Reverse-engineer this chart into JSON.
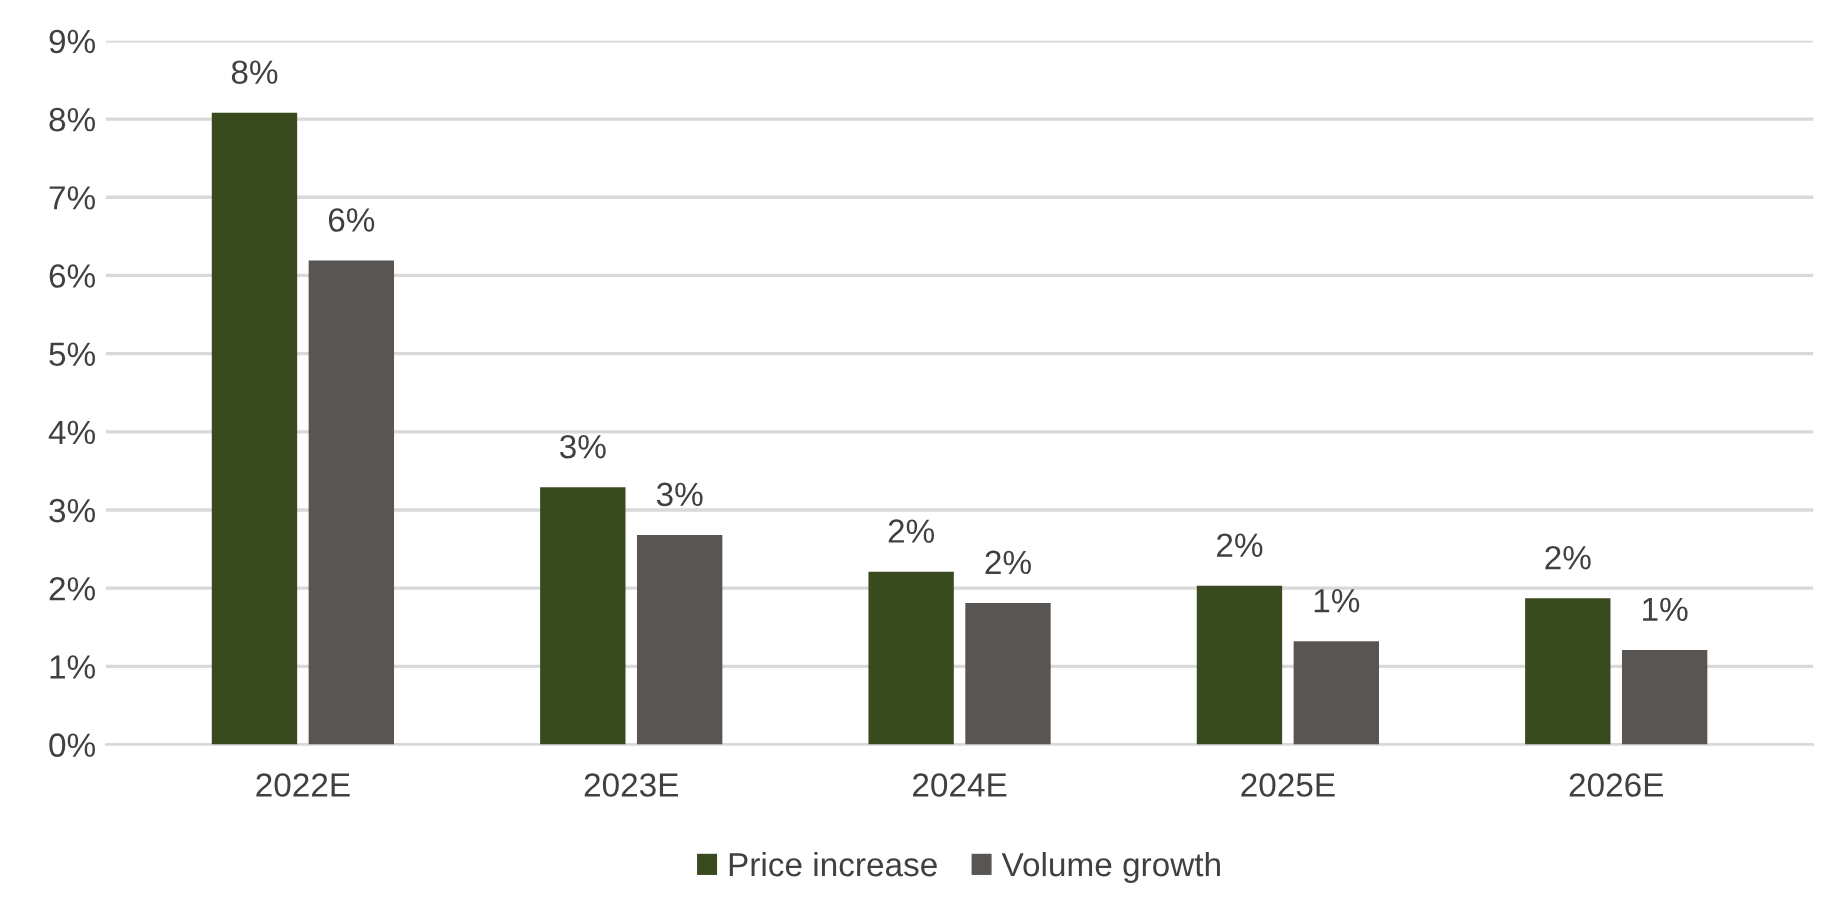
{
  "chart_data": {
    "type": "bar",
    "categories": [
      "2022E",
      "2023E",
      "2024E",
      "2025E",
      "2026E"
    ],
    "series": [
      {
        "name": "Price increase",
        "color": "#3a4a1f",
        "values": [
          8.08,
          3.29,
          2.21,
          2.03,
          1.87
        ],
        "value_labels": [
          "8%",
          "3%",
          "2%",
          "2%",
          "2%"
        ]
      },
      {
        "name": "Volume growth",
        "color": "#595553",
        "values": [
          6.19,
          2.68,
          1.81,
          1.32,
          1.21
        ],
        "value_labels": [
          "6%",
          "3%",
          "2%",
          "1%",
          "1%"
        ]
      }
    ],
    "ylim": [
      0,
      9
    ],
    "yticks": [
      {
        "value": 0,
        "label": "0%"
      },
      {
        "value": 1,
        "label": "1%"
      },
      {
        "value": 2,
        "label": "2%"
      },
      {
        "value": 3,
        "label": "3%"
      },
      {
        "value": 4,
        "label": "4%"
      },
      {
        "value": 5,
        "label": "5%"
      },
      {
        "value": 6,
        "label": "6%"
      },
      {
        "value": 7,
        "label": "7%"
      },
      {
        "value": 8,
        "label": "8%"
      },
      {
        "value": 9,
        "label": "9%"
      }
    ],
    "grid": "y",
    "legend": "bottom"
  }
}
